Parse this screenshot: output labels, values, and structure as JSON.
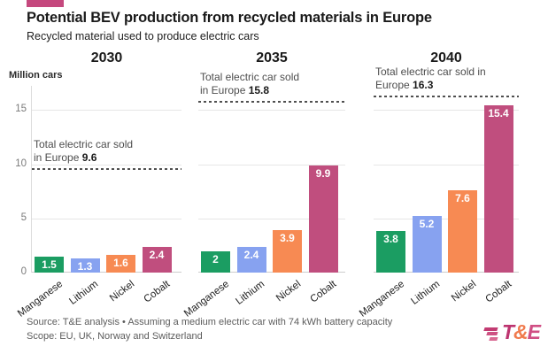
{
  "header": {
    "title": "Potential BEV production from recycled materials in Europe",
    "subtitle": "Recycled material used to produce electric cars",
    "flag_color": "#c5487e"
  },
  "chart_data": {
    "type": "bar",
    "ylabel": "Million cars",
    "yticks": [
      0,
      5,
      10,
      15
    ],
    "ylim": [
      0,
      17.3
    ],
    "grid": "horizontal",
    "legend_position": "none",
    "categories": [
      "Manganese",
      "Lithium",
      "Nickel",
      "Cobalt"
    ],
    "series_colors": [
      "#1b9d62",
      "#87a2f0",
      "#f78a53",
      "#c04e7e"
    ],
    "panels": [
      {
        "year": "2030",
        "values": [
          1.5,
          1.3,
          1.6,
          2.4
        ],
        "labels": [
          "1.5",
          "1.3",
          "1.6",
          "2.4"
        ],
        "total_sold": 9.6,
        "annotation_line1": "Total electric car sold",
        "annotation_line2": "in Europe",
        "annotation_value": "9.6"
      },
      {
        "year": "2035",
        "values": [
          2,
          2.4,
          3.9,
          9.9
        ],
        "labels": [
          "2",
          "2.4",
          "3.9",
          "9.9"
        ],
        "total_sold": 15.8,
        "annotation_line1": "Total electric car sold",
        "annotation_line2": "in Europe",
        "annotation_value": "15.8"
      },
      {
        "year": "2040",
        "values": [
          3.8,
          5.2,
          7.6,
          15.4
        ],
        "labels": [
          "3.8",
          "5.2",
          "7.6",
          "15.4"
        ],
        "total_sold": 16.3,
        "annotation_line1": "Total electric car sold in",
        "annotation_line2": "Europe",
        "annotation_value": "16.3"
      }
    ]
  },
  "footer": {
    "source": "Source: T&E analysis • Assuming a medium electric car with 74 kWh battery capacity",
    "scope": "Scope: EU, UK, Norway and Switzerland",
    "logo_letters": [
      {
        "ch": "T",
        "color": "#bd3470"
      },
      {
        "ch": "&",
        "color": "#f07b4e"
      },
      {
        "ch": "E",
        "color": "#d04e84"
      }
    ],
    "logo_bar_colors": [
      "#c23b72",
      "#cd5283",
      "#d96a93"
    ]
  }
}
